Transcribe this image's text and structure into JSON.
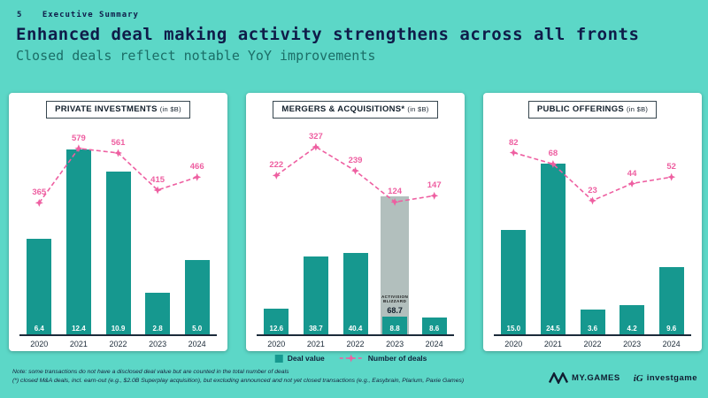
{
  "slide": {
    "page_number": "5",
    "section": "Executive Summary",
    "title": "Enhanced deal making activity strengthens across all fronts",
    "subtitle": "Closed deals reflect notable YoY improvements"
  },
  "legend": {
    "deal_value": "Deal value",
    "number_of_deals": "Number of deals"
  },
  "footnotes": {
    "note": "Note: some transactions do not have a disclosed deal value but are counted in the total number of deals",
    "asterisk": "(*) closed M&A deals, incl. earn-out (e.g., $2.0B Superplay acquisition), but excluding announced and not yet closed transactions (e.g., Easybrain, Plarium, Paxie Games)"
  },
  "logos": {
    "mygames": "MY.GAMES",
    "investgame_mark": "iG",
    "investgame": "investgame"
  },
  "colors": {
    "background": "#5CD7C7",
    "bar_teal": "#16988F",
    "line_pink": "#EE5FA1",
    "title_navy": "#0F1C49",
    "subtitle_teal": "#1B6E67",
    "excluded_gray": "#B2BFBD"
  },
  "chart_data": [
    {
      "type": "bar+line",
      "title": "PRIVATE INVESTMENTS",
      "unit": "(in $B)",
      "categories": [
        "2020",
        "2021",
        "2022",
        "2023",
        "2024"
      ],
      "bar_series_name": "Deal value",
      "bar_values": [
        6.4,
        12.4,
        10.9,
        2.8,
        5.0
      ],
      "bar_labels": [
        "6.4",
        "12.4",
        "10.9",
        "2.8",
        "5.0"
      ],
      "line_series_name": "Number of deals",
      "line_values": [
        365,
        579,
        561,
        415,
        466
      ],
      "bar_axis_max": 14,
      "line_axis": {
        "min": 300,
        "max": 620
      }
    },
    {
      "type": "bar+line",
      "title": "MERGERS & ACQUISITIONS*",
      "unit": "(in $B)",
      "categories": [
        "2020",
        "2021",
        "2022",
        "2023",
        "2024"
      ],
      "bar_series_name": "Deal value",
      "bar_values": [
        12.6,
        38.7,
        40.4,
        8.8,
        8.6
      ],
      "bar_labels": [
        "12.6",
        "38.7",
        "40.4",
        "8.8",
        "8.6"
      ],
      "line_series_name": "Number of deals",
      "line_values": [
        222,
        327,
        239,
        124,
        147
      ],
      "bar_axis_max": 104,
      "line_axis": {
        "min": 60,
        "max": 360
      },
      "overlay": {
        "index": 3,
        "value": 68.7,
        "label": "68.7",
        "logo_lines": [
          "ACTIVISION",
          "BLIZZARD"
        ]
      }
    },
    {
      "type": "bar+line",
      "title": "PUBLIC OFFERINGS",
      "unit": "(in $B)",
      "categories": [
        "2020",
        "2021",
        "2022",
        "2023",
        "2024"
      ],
      "bar_series_name": "Deal value",
      "bar_values": [
        15.0,
        24.5,
        3.6,
        4.2,
        9.6
      ],
      "bar_labels": [
        "15.0",
        "24.5",
        "3.6",
        "4.2",
        "9.6"
      ],
      "line_series_name": "Number of deals",
      "line_values": [
        82,
        68,
        23,
        44,
        52
      ],
      "bar_axis_max": 30,
      "line_axis": {
        "min": 0,
        "max": 100
      }
    }
  ]
}
